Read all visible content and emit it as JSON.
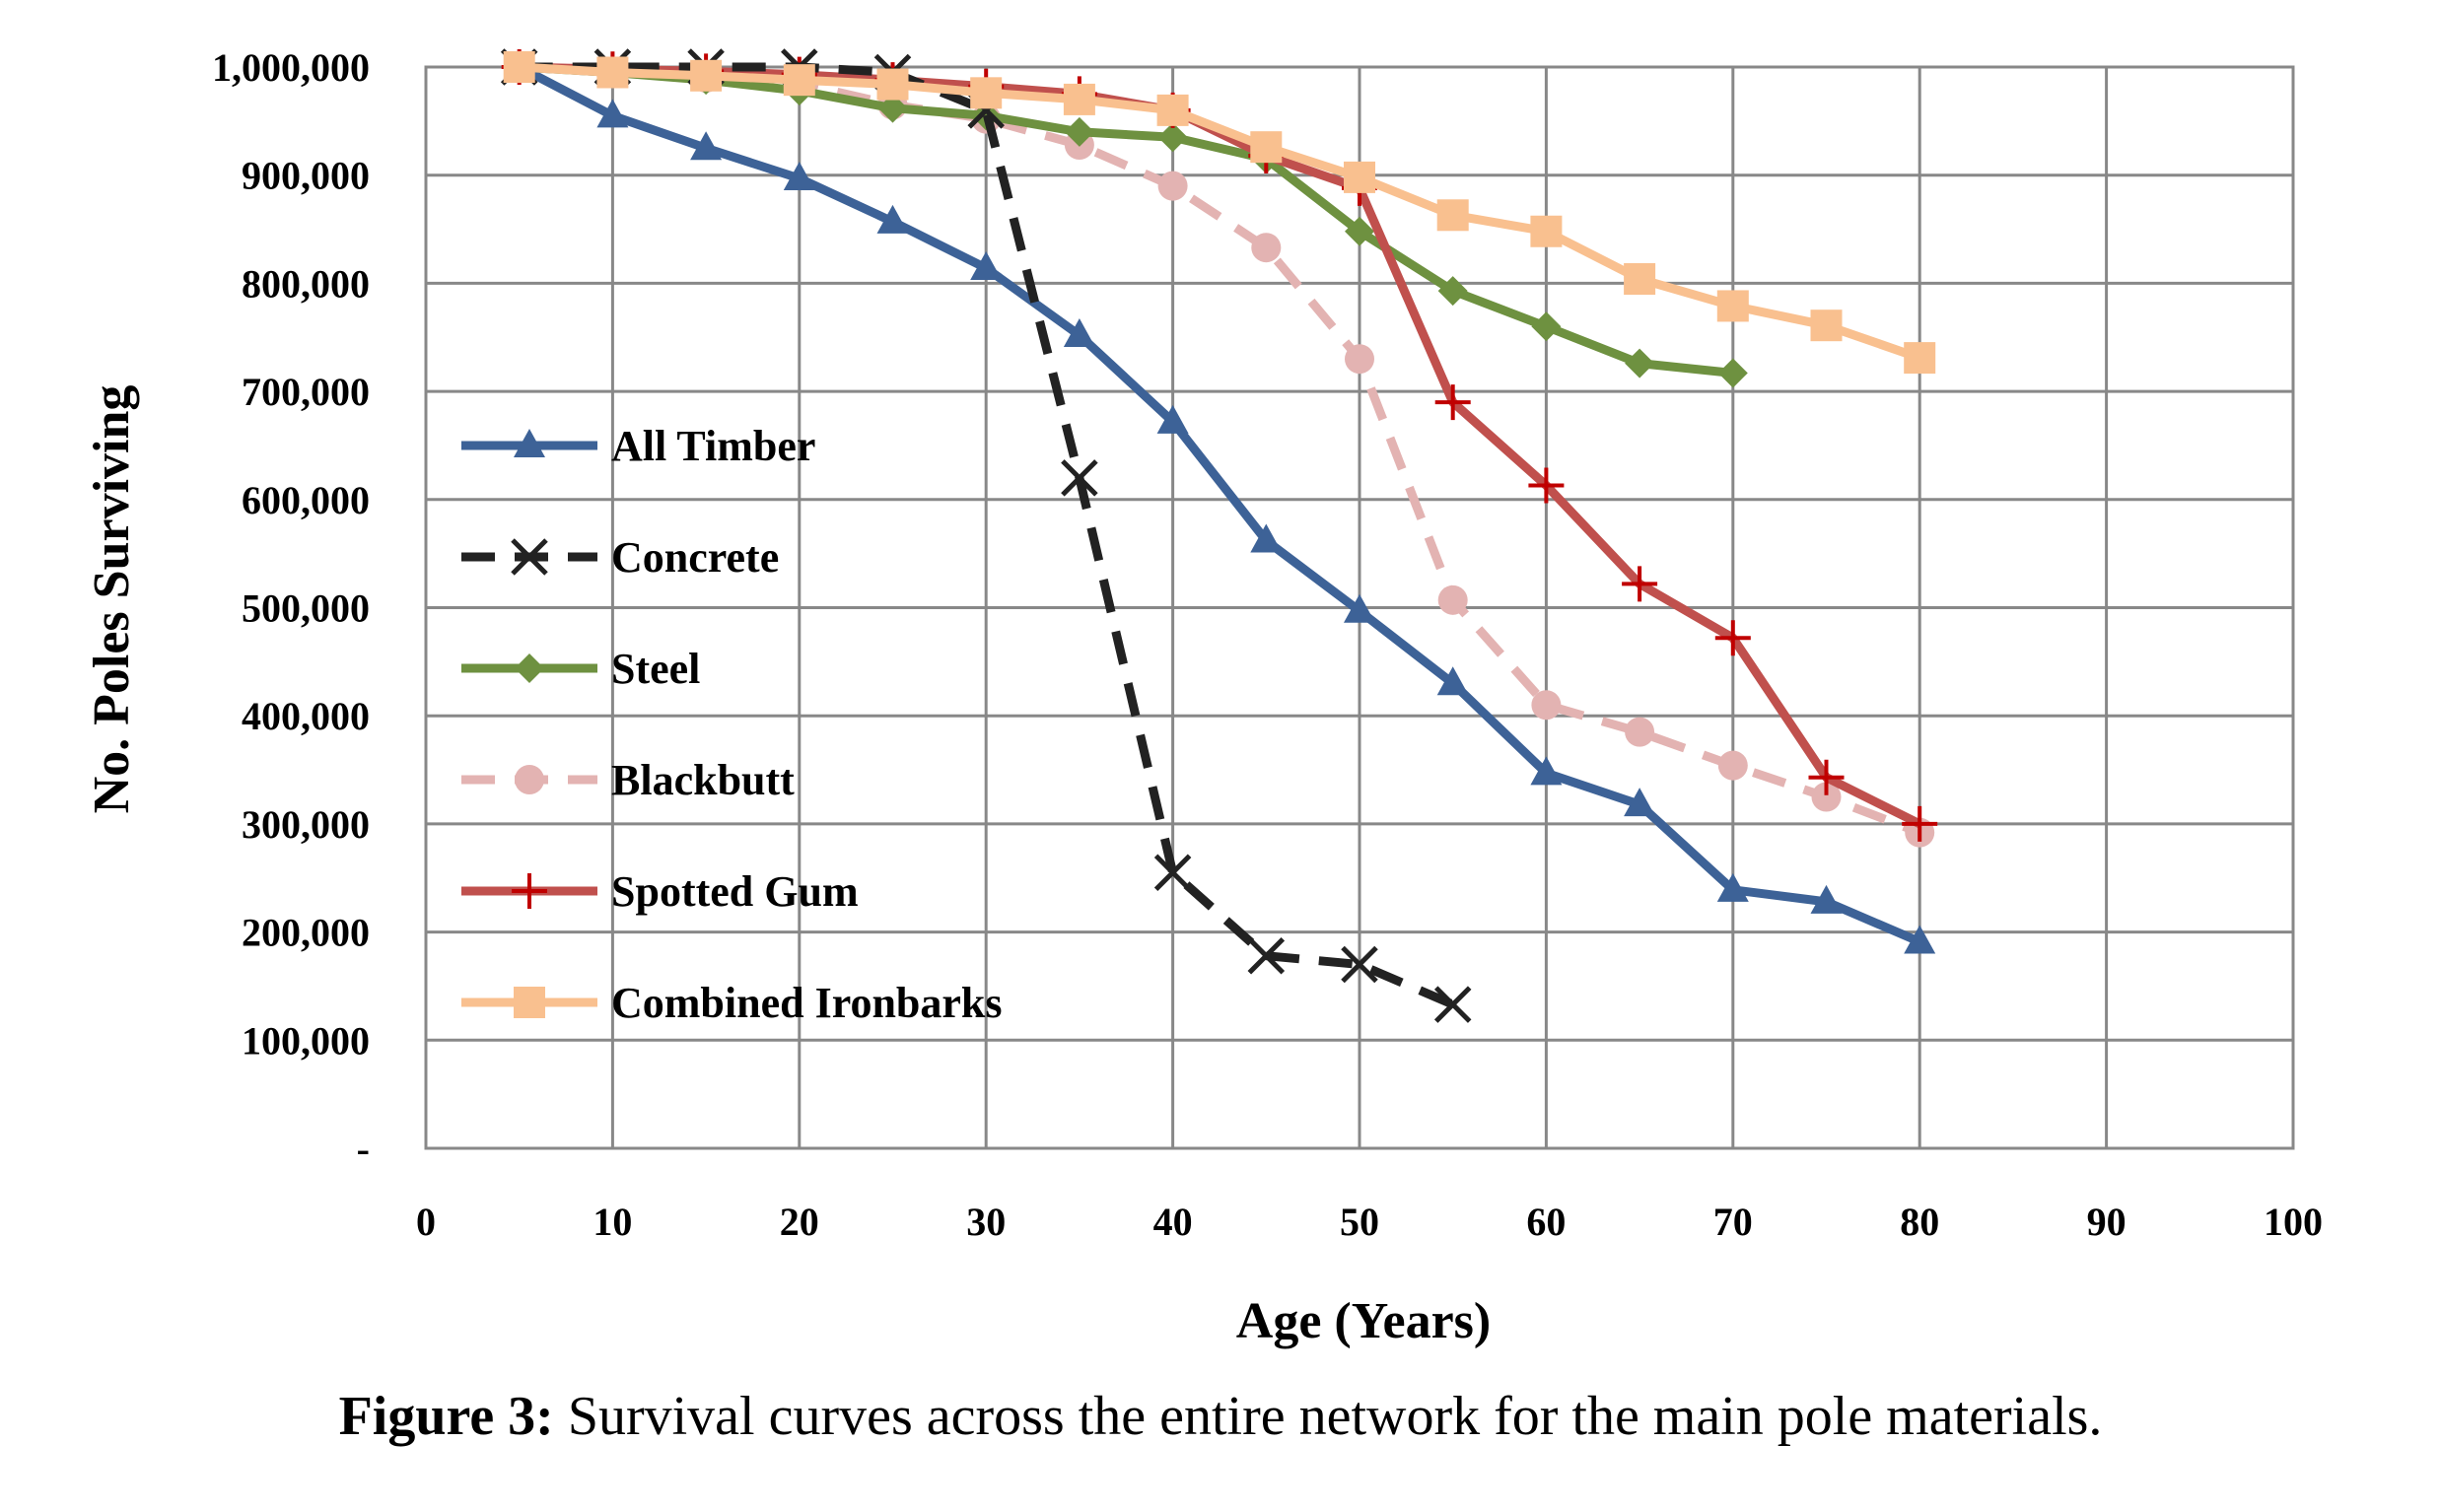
{
  "chart_data": {
    "type": "line",
    "xlabel": "Age (Years)",
    "ylabel": "No. Poles Surviving",
    "xlim": [
      0,
      100
    ],
    "ylim": [
      0,
      1000000
    ],
    "x_ticks": [
      "0",
      "10",
      "20",
      "30",
      "40",
      "50",
      "60",
      "70",
      "80",
      "90",
      "100"
    ],
    "y_ticks": [
      "-",
      "100,000",
      "200,000",
      "300,000",
      "400,000",
      "500,000",
      "600,000",
      "700,000",
      "800,000",
      "900,000",
      "1,000,000"
    ],
    "grid": true,
    "legend_position": "left",
    "series": [
      {
        "name": "All Timber",
        "color": "#3d6297",
        "marker": "triangle",
        "dash": "solid",
        "x": [
          5,
          10,
          15,
          20,
          25,
          30,
          35,
          40,
          45,
          50,
          55,
          60,
          65,
          70,
          75,
          80
        ],
        "y": [
          1000000,
          955000,
          925000,
          897000,
          857000,
          814000,
          752000,
          672000,
          562000,
          497000,
          430000,
          347000,
          318000,
          239000,
          228000,
          191000
        ]
      },
      {
        "name": "Concrete",
        "color": "#222222",
        "marker": "x",
        "dash": "dashed",
        "x": [
          5,
          10,
          15,
          20,
          25,
          30,
          35,
          40,
          45,
          50,
          55
        ],
        "y": [
          1000000,
          1000000,
          1000000,
          1000000,
          995000,
          960000,
          620000,
          255000,
          178000,
          170000,
          133000
        ]
      },
      {
        "name": "Steel",
        "color": "#6e9140",
        "marker": "diamond",
        "dash": "solid",
        "x": [
          5,
          10,
          15,
          20,
          25,
          30,
          35,
          40,
          45,
          50,
          55,
          60,
          65,
          70
        ],
        "y": [
          1000000,
          995000,
          988000,
          978000,
          962000,
          955000,
          940000,
          935000,
          915000,
          848000,
          793000,
          760000,
          726000,
          717000
        ]
      },
      {
        "name": "Blackbutt",
        "color": "#e3b3b2",
        "marker": "circle",
        "dash": "dashed",
        "x": [
          5,
          10,
          15,
          20,
          25,
          30,
          35,
          40,
          45,
          50,
          55,
          60,
          65,
          70,
          75,
          80
        ],
        "y": [
          1000000,
          995000,
          990000,
          985000,
          965000,
          952000,
          928000,
          890000,
          833000,
          730000,
          507000,
          410000,
          385000,
          354000,
          325000,
          292000
        ]
      },
      {
        "name": "Spotted Gum",
        "color": "#c0504d",
        "marker": "plus",
        "dash": "solid",
        "x": [
          5,
          10,
          15,
          20,
          25,
          30,
          35,
          40,
          45,
          50,
          55,
          60,
          65,
          70,
          75,
          80
        ],
        "y": [
          1000000,
          998000,
          996000,
          993000,
          988000,
          982000,
          975000,
          960000,
          918000,
          888000,
          690000,
          613000,
          522000,
          472000,
          343000,
          300000
        ]
      },
      {
        "name": "Combined Ironbarks",
        "color": "#f9c08f",
        "marker": "square",
        "dash": "solid",
        "x": [
          5,
          10,
          15,
          20,
          25,
          30,
          35,
          40,
          45,
          50,
          55,
          60,
          65,
          70,
          75,
          80
        ],
        "y": [
          1000000,
          995000,
          992000,
          988000,
          984000,
          976000,
          970000,
          960000,
          926000,
          898000,
          863000,
          848000,
          804000,
          779000,
          761000,
          731000
        ]
      }
    ]
  },
  "caption": {
    "label": "Figure 3:",
    "text": "Survival curves across the entire network for the main pole materials."
  }
}
